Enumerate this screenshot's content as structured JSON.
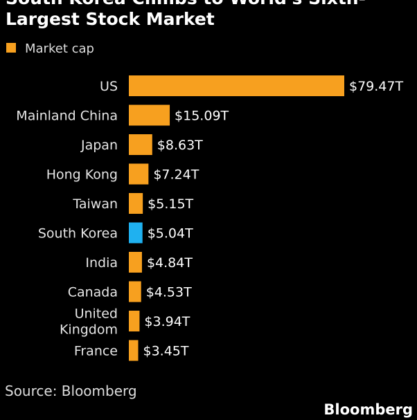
{
  "chart_data": {
    "type": "hbar",
    "title": "South Korea Climbs to World's Sixth-\nLargest Stock Market",
    "categories": [
      "US",
      "Mainland China",
      "Japan",
      "Hong Kong",
      "Taiwan",
      "South Korea",
      "India",
      "Canada",
      "United\nKingdom",
      "France"
    ],
    "series": [
      {
        "name": "Market cap",
        "color": "#f7a01f",
        "values": [
          79.47,
          15.09,
          8.63,
          7.24,
          5.15,
          5.04,
          4.84,
          4.53,
          3.94,
          3.45
        ],
        "value_labels": [
          "$79.47T",
          "$15.09T",
          "$8.63T",
          "$7.24T",
          "$5.15T",
          "$5.04T",
          "$4.84T",
          "$4.53T",
          "$3.94T",
          "$3.45T"
        ],
        "colors": [
          "#f7a01f",
          "#f7a01f",
          "#f7a01f",
          "#f7a01f",
          "#f7a01f",
          "#1fb1f0",
          "#f7a01f",
          "#f7a01f",
          "#f7a01f",
          "#f7a01f"
        ]
      }
    ],
    "source": "Source: Bloomberg",
    "logo": "Bloomberg"
  }
}
